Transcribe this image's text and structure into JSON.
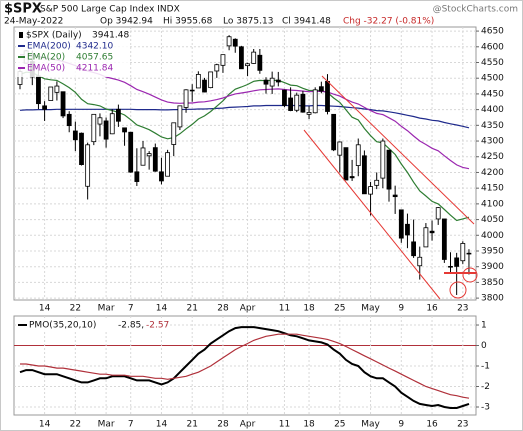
{
  "header": {
    "symbol": "$SPX",
    "name": "S&P 500 Large Cap Index INDX",
    "watermark": "@StockCharts.com",
    "date": "24-May-2022",
    "open": "Op 3942.94",
    "high": "Hi 3955.68",
    "low": "Lo 3875.13",
    "close": "Cl 3941.48",
    "change": "Chg -32.27 (-0.81%)"
  },
  "chart_data": [
    {
      "type": "candlestick",
      "name": "$SPX (Daily)",
      "last_label": "3941.48",
      "color": "#000000",
      "categories": [
        null,
        null,
        null,
        null,
        "14",
        null,
        null,
        null,
        null,
        "22",
        null,
        null,
        null,
        null,
        "Mar",
        null,
        null,
        null,
        "7",
        null,
        null,
        null,
        null,
        "14",
        null,
        null,
        null,
        null,
        "21",
        null,
        null,
        null,
        null,
        "28",
        null,
        null,
        null,
        "Apr",
        null,
        null,
        null,
        null,
        null,
        "11",
        null,
        null,
        null,
        "18",
        null,
        null,
        null,
        null,
        "25",
        null,
        null,
        null,
        null,
        "May",
        null,
        null,
        null,
        null,
        "9",
        null,
        null,
        null,
        null,
        "16",
        null,
        null,
        null,
        null,
        "23",
        null
      ],
      "open": [
        4480,
        4548,
        4553,
        4507,
        4412,
        4429,
        4455,
        4457,
        4385,
        4332,
        4325,
        4156,
        4298,
        4354,
        4364,
        4323,
        4401,
        4342,
        4328,
        4202,
        4223,
        4253,
        4279,
        4202,
        4188,
        4289,
        4345,
        4407,
        4462,
        4469,
        4494,
        4470,
        4523,
        4541,
        4603,
        4624,
        4600,
        4540,
        4547,
        4573,
        4494,
        4475,
        4494,
        4462,
        4437,
        4398,
        4449,
        4385,
        4390,
        4473,
        4490,
        4385,
        4255,
        4279,
        4187,
        4222,
        4253,
        4131,
        4159,
        4182,
        4271,
        4128,
        4081,
        4035,
        3979,
        3903,
        3963,
        4013,
        4052,
        4052,
        3900,
        3928,
        3919,
        3942.94
      ],
      "high": [
        4531,
        4590,
        4588,
        4527,
        4427,
        4472,
        4490,
        4457,
        4395,
        4362,
        4327,
        4295,
        4385,
        4388,
        4375,
        4401,
        4416,
        4343,
        4329,
        4277,
        4300,
        4268,
        4292,
        4247,
        4272,
        4358,
        4412,
        4465,
        4481,
        4522,
        4501,
        4520,
        4546,
        4575,
        4637,
        4627,
        4603,
        4549,
        4593,
        4593,
        4503,
        4521,
        4520,
        4464,
        4471,
        4454,
        4460,
        4411,
        4471,
        4489,
        4513,
        4386,
        4299,
        4279,
        4240,
        4308,
        4270,
        4170,
        4200,
        4308,
        4271,
        4158,
        4082,
        4069,
        4050,
        3964,
        4039,
        4047,
        4090,
        4052,
        3946,
        3944,
        3981,
        3955.68
      ],
      "low": [
        4465,
        4548,
        4478,
        4402,
        4364,
        4429,
        4429,
        4373,
        4328,
        4268,
        4222,
        4114,
        4287,
        4315,
        4279,
        4322,
        4345,
        4285,
        4199,
        4157,
        4223,
        4209,
        4202,
        4162,
        4188,
        4252,
        4335,
        4390,
        4425,
        4469,
        4455,
        4468,
        4501,
        4517,
        4589,
        4581,
        4530,
        4507,
        4546,
        4514,
        4451,
        4450,
        4474,
        4408,
        4395,
        4392,
        4390,
        4370,
        4388,
        4452,
        4385,
        4268,
        4200,
        4176,
        4173,
        4188,
        4132,
        4063,
        4147,
        4150,
        4107,
        4068,
        3976,
        3959,
        3928,
        3859,
        3963,
        3983,
        4033,
        3912,
        3877,
        3810,
        3909,
        3875.13
      ],
      "close": [
        4521,
        4587,
        4504,
        4419,
        4401,
        4472,
        4475,
        4380,
        4349,
        4304,
        4225,
        4288,
        4385,
        4374,
        4306,
        4387,
        4363,
        4329,
        4201,
        4171,
        4278,
        4260,
        4204,
        4173,
        4263,
        4358,
        4412,
        4463,
        4461,
        4512,
        4456,
        4520,
        4543,
        4575,
        4632,
        4602,
        4530,
        4546,
        4583,
        4525,
        4481,
        4500,
        4488,
        4413,
        4397,
        4446,
        4392,
        4391,
        4463,
        4459,
        4394,
        4272,
        4297,
        4176,
        4183,
        4288,
        4132,
        4155,
        4175,
        4300,
        4147,
        4123,
        3991,
        4001,
        3935,
        3930,
        4024,
        4008,
        4088,
        3923,
        3901,
        3901,
        3974,
        3941.48
      ],
      "series": [
        {
          "name": "EMA(200)",
          "value_label": "4342.10",
          "color": "#1f2a8c",
          "values": [
            4398,
            4399,
            4399,
            4400,
            4400,
            4400,
            4401,
            4401,
            4401,
            4401,
            4401,
            4401,
            4401,
            4401,
            4401,
            4401,
            4401,
            4401,
            4401,
            4400,
            4400,
            4400,
            4400,
            4399,
            4399,
            4400,
            4400,
            4401,
            4401,
            4402,
            4402,
            4403,
            4404,
            4405,
            4407,
            4408,
            4409,
            4410,
            4412,
            4412,
            4413,
            4413,
            4413,
            4413,
            4413,
            4413,
            4412,
            4412,
            4413,
            4413,
            4412,
            4411,
            4410,
            4408,
            4406,
            4405,
            4402,
            4400,
            4397,
            4396,
            4393,
            4390,
            4386,
            4382,
            4378,
            4373,
            4370,
            4366,
            4364,
            4359,
            4355,
            4351,
            4347,
            4342.1
          ]
        },
        {
          "name": "EMA(20)",
          "value_label": "4057.65",
          "color": "#2e7d32",
          "values": [
            4512,
            4519,
            4518,
            4508,
            4498,
            4495,
            4493,
            4482,
            4470,
            4455,
            4433,
            4419,
            4416,
            4412,
            4402,
            4397,
            4391,
            4383,
            4368,
            4351,
            4344,
            4336,
            4325,
            4313,
            4307,
            4311,
            4323,
            4339,
            4353,
            4370,
            4380,
            4394,
            4411,
            4428,
            4449,
            4465,
            4472,
            4480,
            4490,
            4493,
            4492,
            4493,
            4493,
            4486,
            4478,
            4476,
            4468,
            4461,
            4461,
            4461,
            4454,
            4437,
            4423,
            4399,
            4376,
            4367,
            4340,
            4317,
            4298,
            4294,
            4276,
            4257,
            4227,
            4200,
            4169,
            4141,
            4125,
            4108,
            4100,
            4082,
            4064,
            4047,
            4052,
            4057.65
          ]
        },
        {
          "name": "EMA(50)",
          "value_label": "4211.84",
          "color": "#9b27b0",
          "values": [
            4575,
            4575,
            4573,
            4569,
            4564,
            4561,
            4558,
            4553,
            4547,
            4540,
            4531,
            4523,
            4518,
            4512,
            4504,
            4499,
            4494,
            4487,
            4476,
            4464,
            4457,
            4449,
            4440,
            4431,
            4424,
            4421,
            4420,
            4421,
            4421,
            4424,
            4425,
            4428,
            4432,
            4437,
            4444,
            4450,
            4453,
            4456,
            4460,
            4463,
            4464,
            4465,
            4466,
            4464,
            4462,
            4461,
            4459,
            4457,
            4458,
            4458,
            4456,
            4449,
            4443,
            4433,
            4424,
            4418,
            4407,
            4397,
            4388,
            4384,
            4374,
            4363,
            4347,
            4333,
            4316,
            4300,
            4289,
            4277,
            4269,
            4253,
            4238,
            4224,
            4216,
            4211.84
          ]
        }
      ],
      "ylim": [
        3794,
        4663
      ],
      "yticks": [
        3800,
        3850,
        3900,
        3950,
        4000,
        4050,
        4100,
        4150,
        4200,
        4250,
        4300,
        4350,
        4400,
        4450,
        4500,
        4550,
        4600,
        4650
      ],
      "grid": true
    },
    {
      "type": "line",
      "categories": [
        null,
        null,
        null,
        null,
        "14",
        null,
        null,
        null,
        null,
        "22",
        null,
        null,
        null,
        null,
        "Mar",
        null,
        null,
        null,
        "7",
        null,
        null,
        null,
        null,
        "14",
        null,
        null,
        null,
        null,
        "21",
        null,
        null,
        null,
        null,
        "28",
        null,
        null,
        null,
        "Apr",
        null,
        null,
        null,
        null,
        null,
        "11",
        null,
        null,
        null,
        "18",
        null,
        null,
        null,
        null,
        "25",
        null,
        null,
        null,
        null,
        "May",
        null,
        null,
        null,
        null,
        "9",
        null,
        null,
        null,
        null,
        "16",
        null,
        null,
        null,
        null,
        "23",
        null
      ],
      "series": [
        {
          "name": "PMO(35,20,10)",
          "value_label": "-2.85,",
          "color": "#000000",
          "values": [
            -1.3,
            -1.2,
            -1.2,
            -1.3,
            -1.4,
            -1.4,
            -1.4,
            -1.5,
            -1.6,
            -1.7,
            -1.8,
            -1.8,
            -1.7,
            -1.6,
            -1.6,
            -1.5,
            -1.5,
            -1.5,
            -1.6,
            -1.7,
            -1.7,
            -1.7,
            -1.8,
            -1.9,
            -1.8,
            -1.6,
            -1.3,
            -1.0,
            -0.7,
            -0.4,
            -0.2,
            0.1,
            0.3,
            0.5,
            0.7,
            0.85,
            0.9,
            0.9,
            0.9,
            0.85,
            0.8,
            0.75,
            0.7,
            0.6,
            0.5,
            0.45,
            0.35,
            0.25,
            0.2,
            0.15,
            0.05,
            -0.2,
            -0.4,
            -0.7,
            -0.9,
            -1.0,
            -1.3,
            -1.5,
            -1.6,
            -1.6,
            -1.8,
            -2.0,
            -2.3,
            -2.5,
            -2.7,
            -2.85,
            -2.9,
            -2.95,
            -2.9,
            -3.0,
            -3.05,
            -3.05,
            -2.95,
            -2.85
          ]
        },
        {
          "value_label": "-2.57",
          "color": "#b0303a",
          "values": [
            -0.9,
            -0.9,
            -0.95,
            -1.0,
            -1.0,
            -1.05,
            -1.1,
            -1.1,
            -1.15,
            -1.2,
            -1.25,
            -1.3,
            -1.35,
            -1.4,
            -1.4,
            -1.45,
            -1.45,
            -1.45,
            -1.5,
            -1.5,
            -1.5,
            -1.55,
            -1.6,
            -1.6,
            -1.65,
            -1.6,
            -1.55,
            -1.5,
            -1.4,
            -1.3,
            -1.15,
            -1.0,
            -0.8,
            -0.6,
            -0.4,
            -0.2,
            -0.05,
            0.1,
            0.25,
            0.35,
            0.45,
            0.5,
            0.55,
            0.55,
            0.55,
            0.55,
            0.5,
            0.45,
            0.4,
            0.35,
            0.3,
            0.2,
            0.1,
            -0.05,
            -0.2,
            -0.35,
            -0.5,
            -0.65,
            -0.8,
            -0.95,
            -1.1,
            -1.25,
            -1.4,
            -1.55,
            -1.7,
            -1.85,
            -2.0,
            -2.1,
            -2.2,
            -2.3,
            -2.4,
            -2.45,
            -2.52,
            -2.57
          ]
        }
      ],
      "ylim": [
        -3.39,
        1.44
      ],
      "yticks": [
        1,
        0,
        -1,
        -2,
        -3
      ],
      "grid": true
    }
  ]
}
